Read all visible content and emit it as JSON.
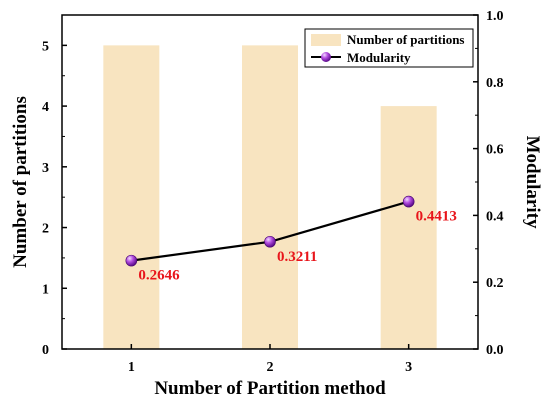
{
  "chart_data": {
    "type": "bar+line",
    "categories": [
      "1",
      "2",
      "3"
    ],
    "xlabel": "Number of Partition method",
    "ylabel_left": "Number of partitions",
    "ylabel_right": "Modularity",
    "ylim_left": [
      0,
      5.5
    ],
    "ylim_right": [
      0,
      1.0
    ],
    "yticks_left": [
      "0",
      "1",
      "2",
      "3",
      "4",
      "5"
    ],
    "yticks_right": [
      "0.0",
      "0.2",
      "0.4",
      "0.6",
      "0.8",
      "1.0"
    ],
    "series": [
      {
        "name": "Number of partitions",
        "kind": "bar",
        "axis": "left",
        "values": [
          5,
          5,
          4
        ],
        "color": "#f8e4c0"
      },
      {
        "name": "Modularity",
        "kind": "line",
        "axis": "right",
        "values": [
          0.2646,
          0.3211,
          0.4413
        ],
        "labels": [
          "0.2646",
          "0.3211",
          "0.4413"
        ],
        "line_color": "#000000",
        "marker_color": "#9b2fd0",
        "label_color": "#e8151b"
      }
    ],
    "legend_position": "top-right",
    "grid": false
  }
}
